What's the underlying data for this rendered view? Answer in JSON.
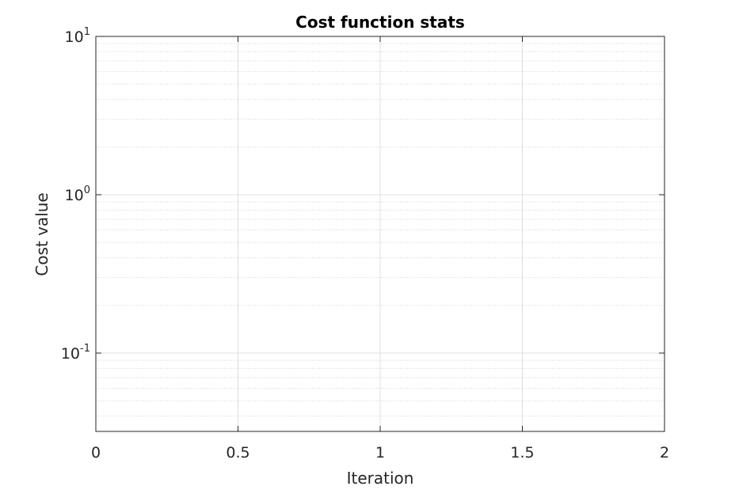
{
  "chart_data": {
    "type": "line",
    "title": "Cost function stats",
    "xlabel": "Iteration",
    "ylabel": "Cost value",
    "xlim": [
      0,
      2
    ],
    "ylim": [
      0.032,
      10
    ],
    "yscale": "log",
    "grid": true,
    "minor_grid": true,
    "x_ticks": [
      {
        "value": 0,
        "label": "0"
      },
      {
        "value": 0.5,
        "label": "0.5"
      },
      {
        "value": 1,
        "label": "1"
      },
      {
        "value": 1.5,
        "label": "1.5"
      },
      {
        "value": 2,
        "label": "2"
      }
    ],
    "y_ticks": [
      {
        "value": 0.1,
        "base": "10",
        "exp": "-1"
      },
      {
        "value": 1,
        "base": "10",
        "exp": "0"
      },
      {
        "value": 10,
        "base": "10",
        "exp": "1"
      }
    ],
    "series": []
  },
  "colors": {
    "axis": "#262626",
    "grid": "#dfdfdf",
    "minor_grid": "#d4d4d4",
    "background": "#ffffff"
  }
}
